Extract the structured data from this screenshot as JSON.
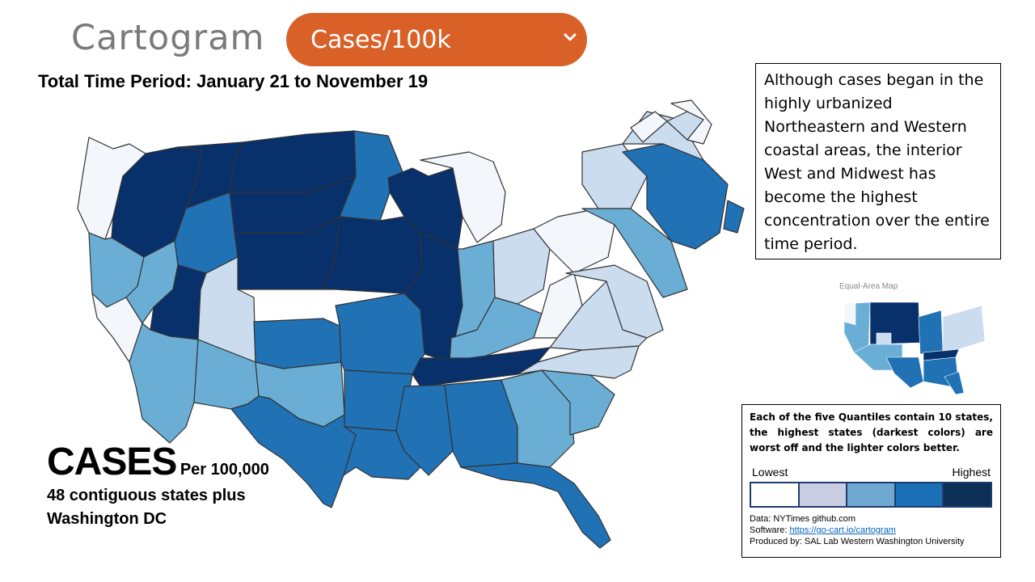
{
  "header": {
    "logo_text": "Cartogram",
    "selector_value": "Cases/100k",
    "period": "Total Time Period: January 21 to November 19"
  },
  "annotation": {
    "text": "Although cases began in the highly urbanized Northeastern and Western coastal areas, the interior West and Midwest has become the highest concentration over the entire time period."
  },
  "title_block": {
    "big": "CASES",
    "small": "Per 100,000",
    "scope": "48 contiguous states plus Washington DC"
  },
  "inset": {
    "label": "Equal-Area Map"
  },
  "legend": {
    "description": "Each of the five Quantiles contain 10 states, the highest states (darkest colors) are worst off and the lighter colors better.",
    "low_label": "Lowest",
    "high_label": "Highest",
    "quantile_colors": [
      "#ffffff",
      "#c9cde3",
      "#6fa8d0",
      "#1b6fb5",
      "#0b2f56"
    ]
  },
  "credits": {
    "data": "Data: NYTimes github.com",
    "software_prefix": "Software:",
    "software_link": "https://go-cart.io/cartogram",
    "produced": "Produced by: SAL Lab Western Washington University"
  },
  "map_colors": {
    "q1": "#f3f7fc",
    "q2": "#cbdcef",
    "q3": "#6aaed6",
    "q4": "#2171b5",
    "q5": "#08306b",
    "border": "#333333"
  }
}
